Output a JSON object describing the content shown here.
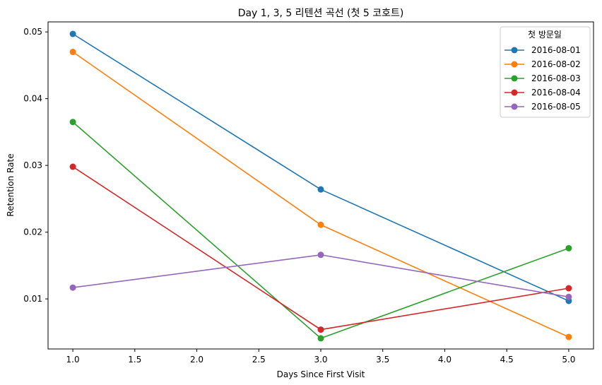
{
  "chart_data": {
    "type": "line",
    "title": "Day 1, 3, 5 리텐션 곡선 (첫 5 코호트)",
    "xlabel": "Days Since First Visit",
    "ylabel": "Retention Rate",
    "x": [
      1.0,
      3.0,
      5.0
    ],
    "xlim": [
      0.8,
      5.2
    ],
    "ylim": [
      0.0025,
      0.0515
    ],
    "xticks": [
      1.0,
      1.5,
      2.0,
      2.5,
      3.0,
      3.5,
      4.0,
      4.5,
      5.0
    ],
    "xtick_labels": [
      "1.0",
      "1.5",
      "2.0",
      "2.5",
      "3.0",
      "3.5",
      "4.0",
      "4.5",
      "5.0"
    ],
    "yticks": [
      0.01,
      0.02,
      0.03,
      0.04,
      0.05
    ],
    "ytick_labels": [
      "0.01",
      "0.02",
      "0.03",
      "0.04",
      "0.05"
    ],
    "grid": false,
    "legend": {
      "title": "첫 방문일",
      "placement": "top-right"
    },
    "series": [
      {
        "name": "2016-08-01",
        "color": "#1f77b4",
        "values": [
          0.0497,
          0.0264,
          0.0097
        ]
      },
      {
        "name": "2016-08-02",
        "color": "#ff7f0e",
        "values": [
          0.047,
          0.0211,
          0.0043
        ]
      },
      {
        "name": "2016-08-03",
        "color": "#2ca02c",
        "values": [
          0.0365,
          0.0041,
          0.0176
        ]
      },
      {
        "name": "2016-08-04",
        "color": "#d62728",
        "values": [
          0.0298,
          0.0054,
          0.0116
        ]
      },
      {
        "name": "2016-08-05",
        "color": "#9467bd",
        "values": [
          0.0117,
          0.0166,
          0.0103
        ]
      }
    ]
  }
}
